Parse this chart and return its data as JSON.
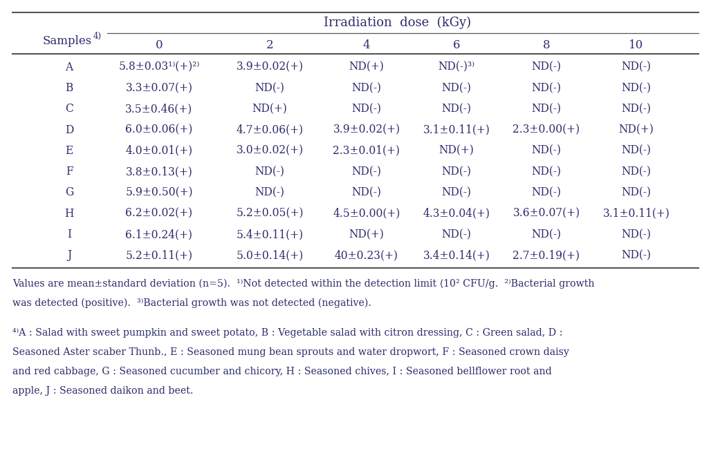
{
  "bg_color": "#ffffff",
  "text_color": "#2b2b6b",
  "line_color": "#555555",
  "irr_header": "Irradiation  dose  (kGy)",
  "samples_label": "Samples",
  "samples_super": "4)",
  "dose_labels": [
    "0",
    "2",
    "4",
    "6",
    "8",
    "10"
  ],
  "row_labels": [
    "A",
    "B",
    "C",
    "D",
    "E",
    "F",
    "G",
    "H",
    "I",
    "J"
  ],
  "table_data": [
    [
      "5.8±0.03¹⁾(+)²⁾",
      "3.9±0.02(+)",
      "ND(+)",
      "ND(-)³⁾",
      "ND(-)",
      "ND(-)"
    ],
    [
      "3.3±0.07(+)",
      "ND(-)",
      "ND(-)",
      "ND(-)",
      "ND(-)",
      "ND(-)"
    ],
    [
      "3.5±0.46(+)",
      "ND(+)",
      "ND(-)",
      "ND(-)",
      "ND(-)",
      "ND(-)"
    ],
    [
      "6.0±0.06(+)",
      "4.7±0.06(+)",
      "3.9±0.02(+)",
      "3.1±0.11(+)",
      "2.3±0.00(+)",
      "ND(+)"
    ],
    [
      "4.0±0.01(+)",
      "3.0±0.02(+)",
      "2.3±0.01(+)",
      "ND(+)",
      "ND(-)",
      "ND(-)"
    ],
    [
      "3.8±0.13(+)",
      "ND(-)",
      "ND(-)",
      "ND(-)",
      "ND(-)",
      "ND(-)"
    ],
    [
      "5.9±0.50(+)",
      "ND(-)",
      "ND(-)",
      "ND(-)",
      "ND(-)",
      "ND(-)"
    ],
    [
      "6.2±0.02(+)",
      "5.2±0.05(+)",
      "4.5±0.00(+)",
      "4.3±0.04(+)",
      "3.6±0.07(+)",
      "3.1±0.11(+)"
    ],
    [
      "6.1±0.24(+)",
      "5.4±0.11(+)",
      "ND(+)",
      "ND(-)",
      "ND(-)",
      "ND(-)"
    ],
    [
      "5.2±0.11(+)",
      "5.0±0.14(+)",
      "40±0.23(+)",
      "3.4±0.14(+)",
      "2.7±0.19(+)",
      "ND(-)"
    ]
  ],
  "footnotes": [
    "Values are mean±standard deviation (n=5).  ¹⁾Not detected within the detection limit ⟨10² CFU/g.  ²⁾Bacterial growth",
    "was detected (positive).  ³⁾Bacterial growth was not detected (negative).",
    "",
    "⁴⁾A : Salad with sweet pumpkin and sweet potato, B : Vegetable salad with citron dressing, C : Green salad, D :",
    "Seasoned Aster scaber Thunb., E : Seasoned mung bean sprouts and water dropwort, F : Seasoned crown daisy",
    "and red cabbage, G : Seasoned cucumber and chicory, H : Seasoned chives, I : Seasoned bellflower root and",
    "apple, J : Seasoned daikon and beet."
  ]
}
